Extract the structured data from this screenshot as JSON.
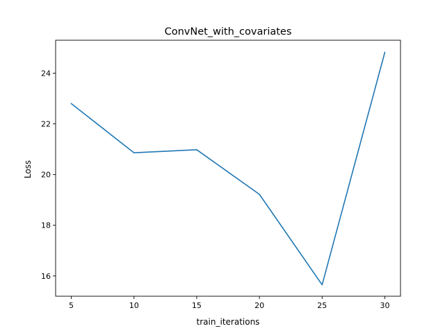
{
  "chart_data": {
    "type": "line",
    "title": "ConvNet_with_covariates",
    "xlabel": "train_iterations",
    "ylabel": "Loss",
    "x": [
      5,
      10,
      15,
      20,
      25,
      30
    ],
    "series": [
      {
        "values": [
          22.8,
          20.86,
          20.98,
          19.22,
          15.65,
          24.82
        ],
        "color": "#1f77b4"
      }
    ],
    "xlim": [
      3.75,
      31.25
    ],
    "ylim": [
      15.2,
      25.3
    ],
    "xticks": [
      5,
      10,
      15,
      20,
      25,
      30
    ],
    "yticks": [
      16,
      18,
      20,
      22,
      24
    ],
    "grid": false
  }
}
